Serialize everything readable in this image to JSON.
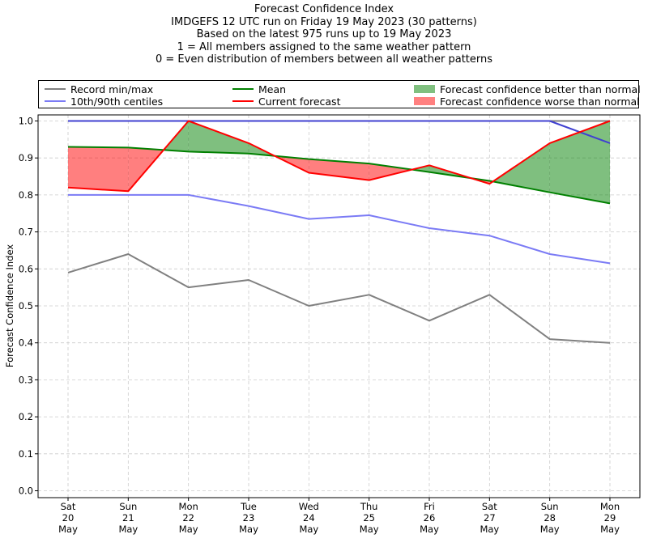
{
  "chart_data": {
    "type": "line",
    "title_lines": [
      "Forecast Confidence Index",
      "IMDGEFS 12 UTC run on Friday 19 May 2023 (30 patterns)",
      "Based on the latest 975 runs up to 19 May 2023",
      "1 = All members assigned to the same weather pattern",
      "0 = Even distribution of members between all weather patterns"
    ],
    "ylabel": "Forecast Confidence Index",
    "ylim": [
      0,
      1
    ],
    "yticks": [
      "0.0",
      "0.1",
      "0.2",
      "0.3",
      "0.4",
      "0.5",
      "0.6",
      "0.7",
      "0.8",
      "0.9",
      "1.0"
    ],
    "grid": true,
    "legend_position": "top, above plot",
    "categories": [
      [
        "Sat",
        "20",
        "May"
      ],
      [
        "Sun",
        "21",
        "May"
      ],
      [
        "Mon",
        "22",
        "May"
      ],
      [
        "Tue",
        "23",
        "May"
      ],
      [
        "Wed",
        "24",
        "May"
      ],
      [
        "Thu",
        "25",
        "May"
      ],
      [
        "Fri",
        "26",
        "May"
      ],
      [
        "Sat",
        "27",
        "May"
      ],
      [
        "Sun",
        "28",
        "May"
      ],
      [
        "Mon",
        "29",
        "May"
      ]
    ],
    "series": [
      {
        "name": "Record min/max",
        "color": "#808080",
        "values": [
          0.59,
          0.64,
          0.55,
          0.57,
          0.5,
          0.53,
          0.46,
          0.53,
          0.41,
          0.4
        ]
      },
      {
        "name": "Record min/max",
        "color": "#808080",
        "values": [
          1.0,
          1.0,
          1.0,
          1.0,
          1.0,
          1.0,
          1.0,
          1.0,
          1.0,
          1.0
        ]
      },
      {
        "name": "10th/90th centiles",
        "color": "#7b7bf5",
        "values": [
          0.8,
          0.8,
          0.8,
          0.77,
          0.735,
          0.745,
          0.71,
          0.69,
          0.64,
          0.615
        ]
      },
      {
        "name": "10th/90th centiles",
        "color": "#4040d0",
        "values": [
          1.0,
          1.0,
          1.0,
          1.0,
          1.0,
          1.0,
          1.0,
          1.0,
          1.0,
          0.94
        ]
      },
      {
        "name": "Mean",
        "color": "#008000",
        "values": [
          0.93,
          0.928,
          0.917,
          0.912,
          0.897,
          0.885,
          0.862,
          0.838,
          0.807,
          0.777
        ]
      },
      {
        "name": "Current forecast",
        "color": "#ff0000",
        "values": [
          0.82,
          0.81,
          1.0,
          0.94,
          0.86,
          0.84,
          0.88,
          0.83,
          0.94,
          1.0
        ]
      }
    ],
    "fills": {
      "better_color": "#008000",
      "worse_color": "#ff0000"
    },
    "legend": [
      {
        "label": "Record min/max",
        "kind": "line",
        "color": "#808080"
      },
      {
        "label": "10th/90th centiles",
        "kind": "line",
        "color": "#7b7bf5"
      },
      {
        "label": "Mean",
        "kind": "line",
        "color": "#008000"
      },
      {
        "label": "Current forecast",
        "kind": "line",
        "color": "#ff0000"
      },
      {
        "label": "Forecast confidence better than normal",
        "kind": "patch",
        "color": "#80c080"
      },
      {
        "label": "Forecast confidence worse than normal",
        "kind": "patch",
        "color": "#ff8080"
      }
    ]
  }
}
